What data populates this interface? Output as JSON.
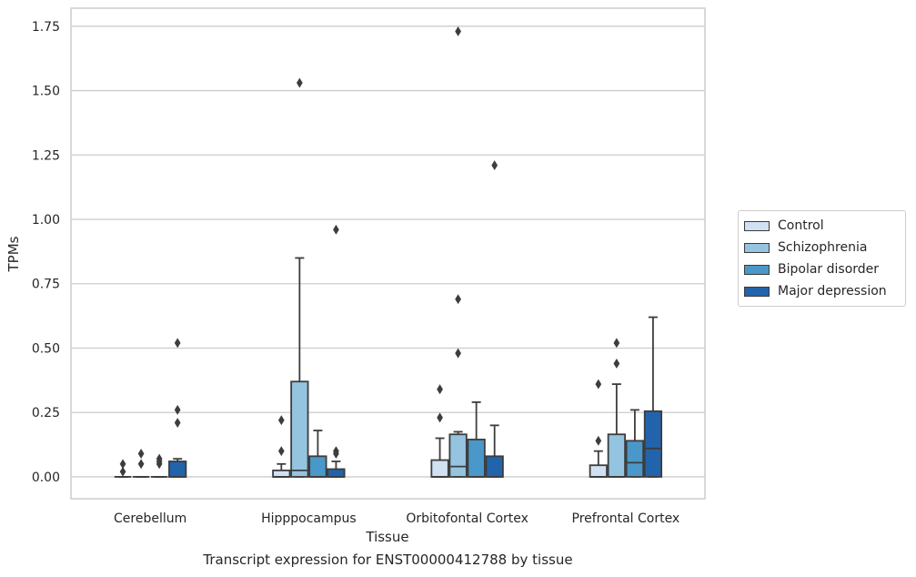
{
  "caption": "Transcript expression for ENST00000412788 by tissue",
  "chart_data": {
    "type": "box",
    "title": "",
    "xlabel": "Tissue",
    "ylabel": "TPMs",
    "ylim": [
      -0.085,
      1.82
    ],
    "yticks": [
      0.0,
      0.25,
      0.5,
      0.75,
      1.0,
      1.25,
      1.5,
      1.75
    ],
    "ytick_labels": [
      "0.00",
      "0.25",
      "0.50",
      "0.75",
      "1.00",
      "1.25",
      "1.50",
      "1.75"
    ],
    "grid": "horizontal",
    "legend_position": "right",
    "categories": [
      "Cerebellum",
      "Hipppocampus",
      "Orbitofontal Cortex",
      "Prefrontal Cortex"
    ],
    "series": [
      {
        "name": "Control",
        "color": "#d0e1f2",
        "boxes": [
          {
            "whislo": 0.0,
            "q1": 0.0,
            "med": 0.0,
            "q3": 0.0,
            "whishi": 0.0,
            "fliers": [
              0.02,
              0.05
            ]
          },
          {
            "whislo": 0.0,
            "q1": 0.0,
            "med": 0.0,
            "q3": 0.025,
            "whishi": 0.05,
            "fliers": [
              0.1,
              0.22
            ]
          },
          {
            "whislo": 0.0,
            "q1": 0.0,
            "med": 0.0,
            "q3": 0.065,
            "whishi": 0.15,
            "fliers": [
              0.23,
              0.34
            ]
          },
          {
            "whislo": 0.0,
            "q1": 0.0,
            "med": 0.0,
            "q3": 0.045,
            "whishi": 0.1,
            "fliers": [
              0.14,
              0.36
            ]
          }
        ]
      },
      {
        "name": "Schizophrenia",
        "color": "#94c4df",
        "boxes": [
          {
            "whislo": 0.0,
            "q1": 0.0,
            "med": 0.0,
            "q3": 0.0,
            "whishi": 0.0,
            "fliers": [
              0.05,
              0.09
            ]
          },
          {
            "whislo": 0.0,
            "q1": 0.0,
            "med": 0.025,
            "q3": 0.37,
            "whishi": 0.85,
            "fliers": [
              1.53
            ]
          },
          {
            "whislo": 0.0,
            "q1": 0.0,
            "med": 0.04,
            "q3": 0.165,
            "whishi": 0.175,
            "fliers": [
              0.48,
              0.69,
              1.73
            ]
          },
          {
            "whislo": 0.0,
            "q1": 0.0,
            "med": 0.0,
            "q3": 0.165,
            "whishi": 0.36,
            "fliers": [
              0.44,
              0.52
            ]
          }
        ]
      },
      {
        "name": "Bipolar disorder",
        "color": "#4a98c9",
        "boxes": [
          {
            "whislo": 0.0,
            "q1": 0.0,
            "med": 0.0,
            "q3": 0.0,
            "whishi": 0.0,
            "fliers": [
              0.05,
              0.06,
              0.07
            ]
          },
          {
            "whislo": 0.0,
            "q1": 0.0,
            "med": 0.0,
            "q3": 0.08,
            "whishi": 0.18,
            "fliers": []
          },
          {
            "whislo": 0.0,
            "q1": 0.0,
            "med": 0.0,
            "q3": 0.145,
            "whishi": 0.29,
            "fliers": []
          },
          {
            "whislo": 0.0,
            "q1": 0.0,
            "med": 0.055,
            "q3": 0.14,
            "whishi": 0.26,
            "fliers": []
          }
        ]
      },
      {
        "name": "Major depression",
        "color": "#2164ab",
        "boxes": [
          {
            "whislo": 0.0,
            "q1": 0.0,
            "med": 0.0,
            "q3": 0.06,
            "whishi": 0.07,
            "fliers": [
              0.21,
              0.26,
              0.52
            ]
          },
          {
            "whislo": 0.0,
            "q1": 0.0,
            "med": 0.0,
            "q3": 0.03,
            "whishi": 0.06,
            "fliers": [
              0.09,
              0.1,
              0.96
            ]
          },
          {
            "whislo": 0.0,
            "q1": 0.0,
            "med": 0.0,
            "q3": 0.08,
            "whishi": 0.2,
            "fliers": [
              1.21
            ]
          },
          {
            "whislo": 0.0,
            "q1": 0.0,
            "med": 0.11,
            "q3": 0.255,
            "whishi": 0.62,
            "fliers": []
          }
        ]
      }
    ]
  }
}
